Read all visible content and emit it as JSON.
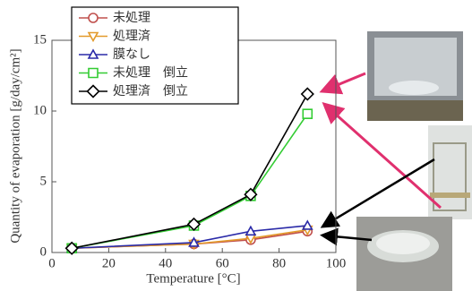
{
  "chart_data": {
    "type": "line",
    "xlabel": "Temperature [°C]",
    "ylabel": "Quantity of evaporation [g/day/cm²]",
    "x": [
      7,
      50,
      70,
      90
    ],
    "series": [
      {
        "name": "未処理",
        "color": "#c0504d",
        "marker": "circle",
        "values": [
          0.3,
          0.6,
          0.9,
          1.5
        ]
      },
      {
        "name": "処理済",
        "color": "#e39a2b",
        "marker": "triangle-down",
        "values": [
          0.3,
          0.6,
          1.0,
          1.6
        ]
      },
      {
        "name": "膜なし",
        "color": "#2a2aa8",
        "marker": "triangle-up",
        "values": [
          0.3,
          0.7,
          1.5,
          1.9
        ]
      },
      {
        "name": "未処理　倒立",
        "color": "#33cc33",
        "marker": "square",
        "values": [
          0.3,
          1.9,
          4.0,
          9.8
        ]
      },
      {
        "name": "処理済　倒立",
        "color": "#000000",
        "marker": "diamond",
        "values": [
          0.3,
          2.0,
          4.1,
          11.2
        ]
      }
    ],
    "xlim": [
      0,
      100
    ],
    "xticks": [
      0,
      20,
      40,
      60,
      80,
      100
    ],
    "ylim": [
      0,
      15
    ],
    "yticks": [
      0,
      5,
      10,
      15
    ],
    "legend": "upper left"
  }
}
